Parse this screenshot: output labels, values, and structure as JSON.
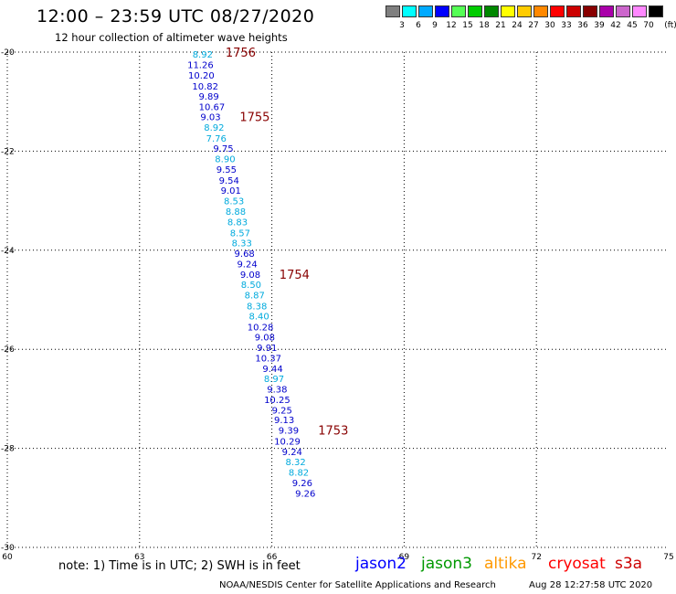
{
  "header": {
    "title": "12:00 – 23:59 UTC 08/27/2020",
    "subtitle": "12 hour collection of altimeter wave heights"
  },
  "colorbar": {
    "colors": [
      "#7f7f7f",
      "#00ffff",
      "#00aaff",
      "#0000ff",
      "#55ff55",
      "#00cc00",
      "#008800",
      "#ffff00",
      "#ffcc00",
      "#ff8800",
      "#ff0000",
      "#cc0000",
      "#880000",
      "#aa00aa",
      "#cc66cc",
      "#ff88ff",
      "#000000"
    ],
    "labels": [
      "3",
      "6",
      "9",
      "12",
      "15",
      "18",
      "21",
      "24",
      "27",
      "30",
      "33",
      "36",
      "39",
      "42",
      "45",
      "70",
      "(ft)"
    ]
  },
  "chart_data": {
    "type": "scatter",
    "xlim": [
      60,
      75
    ],
    "ylim": [
      -30,
      -20
    ],
    "xticks": [
      "60",
      "63",
      "66",
      "69",
      "72",
      "75"
    ],
    "yticks": [
      "-20",
      "-22",
      "-24",
      "-26",
      "-28",
      "-30"
    ],
    "grid": true,
    "points": [
      {
        "x": 64.43,
        "y": -20.04,
        "v": "8.92",
        "c": "#00aadd"
      },
      {
        "x": 64.38,
        "y": -20.25,
        "v": "11.26",
        "c": "#0000cc"
      },
      {
        "x": 64.4,
        "y": -20.46,
        "v": "10.20",
        "c": "#0000cc"
      },
      {
        "x": 64.49,
        "y": -20.68,
        "v": "10.82",
        "c": "#0000cc"
      },
      {
        "x": 64.57,
        "y": -20.89,
        "v": "9.89",
        "c": "#0000cc"
      },
      {
        "x": 64.64,
        "y": -21.1,
        "v": "10.67",
        "c": "#0000cc"
      },
      {
        "x": 64.61,
        "y": -21.3,
        "v": "9.03",
        "c": "#0000cc"
      },
      {
        "x": 64.69,
        "y": -21.51,
        "v": "8.92",
        "c": "#00aadd"
      },
      {
        "x": 64.74,
        "y": -21.73,
        "v": "7.76",
        "c": "#00aadd"
      },
      {
        "x": 64.9,
        "y": -21.94,
        "v": "9.75",
        "c": "#0000cc"
      },
      {
        "x": 64.94,
        "y": -22.15,
        "v": "8.90",
        "c": "#00aadd"
      },
      {
        "x": 64.97,
        "y": -22.36,
        "v": "9.55",
        "c": "#0000cc"
      },
      {
        "x": 65.03,
        "y": -22.58,
        "v": "9.54",
        "c": "#0000cc"
      },
      {
        "x": 65.07,
        "y": -22.79,
        "v": "9.01",
        "c": "#0000cc"
      },
      {
        "x": 65.14,
        "y": -23.0,
        "v": "8.53",
        "c": "#00aadd"
      },
      {
        "x": 65.18,
        "y": -23.21,
        "v": "8.88",
        "c": "#00aadd"
      },
      {
        "x": 65.22,
        "y": -23.42,
        "v": "8.83",
        "c": "#00aadd"
      },
      {
        "x": 65.28,
        "y": -23.64,
        "v": "8.57",
        "c": "#00aadd"
      },
      {
        "x": 65.32,
        "y": -23.85,
        "v": "8.33",
        "c": "#00aadd"
      },
      {
        "x": 65.38,
        "y": -24.06,
        "v": "9.68",
        "c": "#0000cc"
      },
      {
        "x": 65.44,
        "y": -24.27,
        "v": "9.24",
        "c": "#0000cc"
      },
      {
        "x": 65.51,
        "y": -24.48,
        "v": "9.08",
        "c": "#0000cc"
      },
      {
        "x": 65.53,
        "y": -24.69,
        "v": "8.50",
        "c": "#00aadd"
      },
      {
        "x": 65.61,
        "y": -24.9,
        "v": "8.87",
        "c": "#00aadd"
      },
      {
        "x": 65.66,
        "y": -25.12,
        "v": "8.38",
        "c": "#00aadd"
      },
      {
        "x": 65.71,
        "y": -25.32,
        "v": "8.40",
        "c": "#00aadd"
      },
      {
        "x": 65.74,
        "y": -25.54,
        "v": "10.28",
        "c": "#0000cc"
      },
      {
        "x": 65.84,
        "y": -25.75,
        "v": "9.08",
        "c": "#0000cc"
      },
      {
        "x": 65.89,
        "y": -25.96,
        "v": "9.91",
        "c": "#0000cc"
      },
      {
        "x": 65.92,
        "y": -26.17,
        "v": "10.37",
        "c": "#0000cc"
      },
      {
        "x": 66.02,
        "y": -26.38,
        "v": "9.44",
        "c": "#0000cc"
      },
      {
        "x": 66.05,
        "y": -26.59,
        "v": "8.97",
        "c": "#00aadd"
      },
      {
        "x": 66.12,
        "y": -26.8,
        "v": "9.38",
        "c": "#0000cc"
      },
      {
        "x": 66.12,
        "y": -27.01,
        "v": "10.25",
        "c": "#0000cc"
      },
      {
        "x": 66.23,
        "y": -27.22,
        "v": "9.25",
        "c": "#0000cc"
      },
      {
        "x": 66.28,
        "y": -27.42,
        "v": "9.13",
        "c": "#0000cc"
      },
      {
        "x": 66.38,
        "y": -27.63,
        "v": "9.39",
        "c": "#0000cc"
      },
      {
        "x": 66.35,
        "y": -27.85,
        "v": "10.29",
        "c": "#0000cc"
      },
      {
        "x": 66.46,
        "y": -28.06,
        "v": "9.24",
        "c": "#0000cc"
      },
      {
        "x": 66.54,
        "y": -28.27,
        "v": "8.32",
        "c": "#00aadd"
      },
      {
        "x": 66.61,
        "y": -28.48,
        "v": "8.82",
        "c": "#00aadd"
      },
      {
        "x": 66.69,
        "y": -28.69,
        "v": "9.26",
        "c": "#0000cc"
      },
      {
        "x": 66.76,
        "y": -28.9,
        "v": "9.26",
        "c": "#0000cc"
      }
    ],
    "time_labels": [
      {
        "x": 64.95,
        "y": -20.0,
        "text": "1756"
      },
      {
        "x": 65.27,
        "y": -21.3,
        "text": "1755"
      },
      {
        "x": 66.17,
        "y": -24.48,
        "text": "1754"
      },
      {
        "x": 67.05,
        "y": -27.63,
        "text": "1753"
      }
    ],
    "time_label_color": "#880000"
  },
  "note": "note: 1) Time is in UTC; 2) SWH is in feet",
  "satellites": [
    {
      "name": "jason2",
      "color": "#0000ff"
    },
    {
      "name": "jason3",
      "color": "#009900"
    },
    {
      "name": "altika",
      "color": "#ff9900"
    },
    {
      "name": "cryosat",
      "color": "#ff0000"
    },
    {
      "name": "s3a",
      "color": "#cc0000"
    }
  ],
  "footer": {
    "credit": "NOAA/NESDIS Center for Satellite Applications and Research",
    "timestamp": "Aug 28 12:27:58 UTC 2020"
  }
}
